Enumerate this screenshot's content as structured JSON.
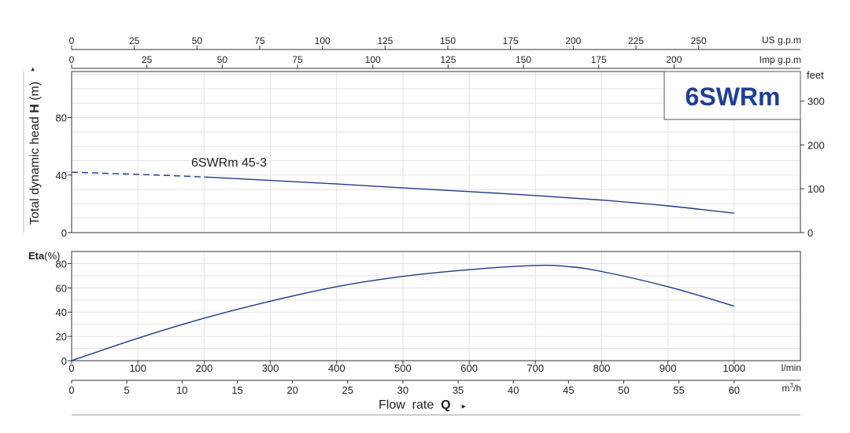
{
  "chart_data": [
    {
      "type": "line",
      "title": "6SWRm",
      "ylabel_prefix": "Total dynamic head ",
      "ylabel_bold": "H",
      "ylabel_suffix": " (m)",
      "yticks_left": [
        0,
        40,
        80
      ],
      "ylim_m": [
        0,
        112
      ],
      "right_axis_label": "feet",
      "yticks_right": [
        0,
        100,
        200,
        300
      ],
      "top_axis_us": {
        "label": "US g.p.m",
        "ticks": [
          0,
          25,
          50,
          75,
          100,
          125,
          150,
          175,
          200,
          225,
          250
        ]
      },
      "top_axis_imp": {
        "label": "Imp g.p.m",
        "ticks": [
          0,
          25,
          50,
          75,
          100,
          125,
          150,
          175,
          200
        ]
      },
      "series": [
        {
          "name": "6SWRm 45-3",
          "dashed_until_x": 200,
          "x": [
            0,
            100,
            200,
            300,
            400,
            500,
            600,
            700,
            800,
            900,
            1000
          ],
          "y": [
            42,
            40.5,
            38.7,
            36.3,
            33.8,
            31.1,
            28.5,
            25.8,
            22.6,
            18.6,
            13.5
          ]
        }
      ]
    },
    {
      "type": "line",
      "ylabel_bold": "Eta",
      "ylabel_suffix": "(%)",
      "yticks": [
        0,
        20,
        40,
        60,
        80
      ],
      "ylim": [
        0,
        90
      ],
      "series": [
        {
          "x": [
            0,
            100,
            200,
            300,
            400,
            500,
            600,
            700,
            750,
            800,
            900,
            1000
          ],
          "y": [
            0,
            18.5,
            35,
            49,
            61,
            69.5,
            75,
            78.5,
            77.5,
            73.5,
            61,
            45
          ]
        }
      ]
    }
  ],
  "x_axis": {
    "xlim": [
      0,
      1100
    ],
    "lmin_label": "l/min",
    "lmin_ticks": [
      0,
      100,
      200,
      300,
      400,
      500,
      600,
      700,
      800,
      900,
      1000
    ],
    "m3h_unit": "m",
    "m3h_sup": "3",
    "m3h_suffix": "/h",
    "m3h_ticks": [
      0,
      5,
      10,
      15,
      20,
      25,
      30,
      35,
      40,
      45,
      50,
      55,
      60
    ],
    "title_prefix": "Flow  rate  ",
    "title_bold": "Q",
    "arrow": "▸"
  },
  "colors": {
    "curve": "#1d3a8a",
    "title": "#1f3f96",
    "grid": "#e2e2e2",
    "axis": "#333333"
  }
}
